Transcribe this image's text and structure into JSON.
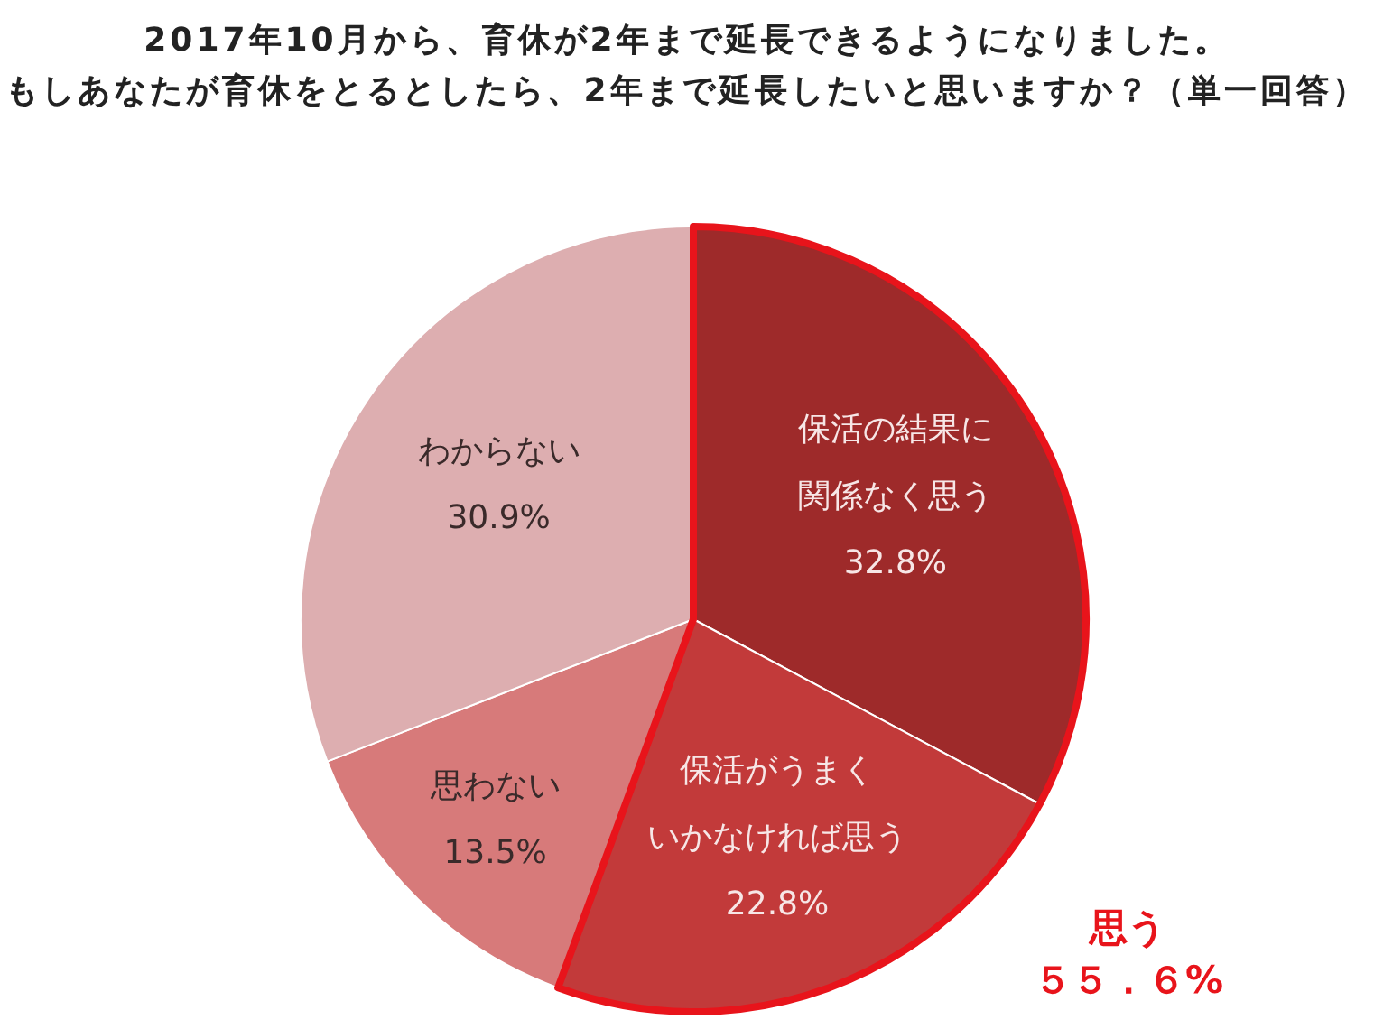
{
  "chart_data": {
    "type": "pie",
    "title": "2017年10月から、育休が2年まで延長できるようになりました。",
    "subtitle": "もしあなたが育休をとるとしたら、2年まで延長したいと思いますか？（単一回答）",
    "categories": [
      "保活の結果に関係なく思う",
      "保活がうまくいかなければ思う",
      "思わない",
      "わからない"
    ],
    "values": [
      32.8,
      22.8,
      13.5,
      30.9
    ],
    "colors": [
      "#9e2a2a",
      "#c23a3a",
      "#d77a7a",
      "#ddaeb0"
    ],
    "value_labels": [
      "32.8%",
      "22.8%",
      "13.5%",
      "30.9%"
    ],
    "annotations": [
      "思う",
      "５５．６%"
    ]
  }
}
